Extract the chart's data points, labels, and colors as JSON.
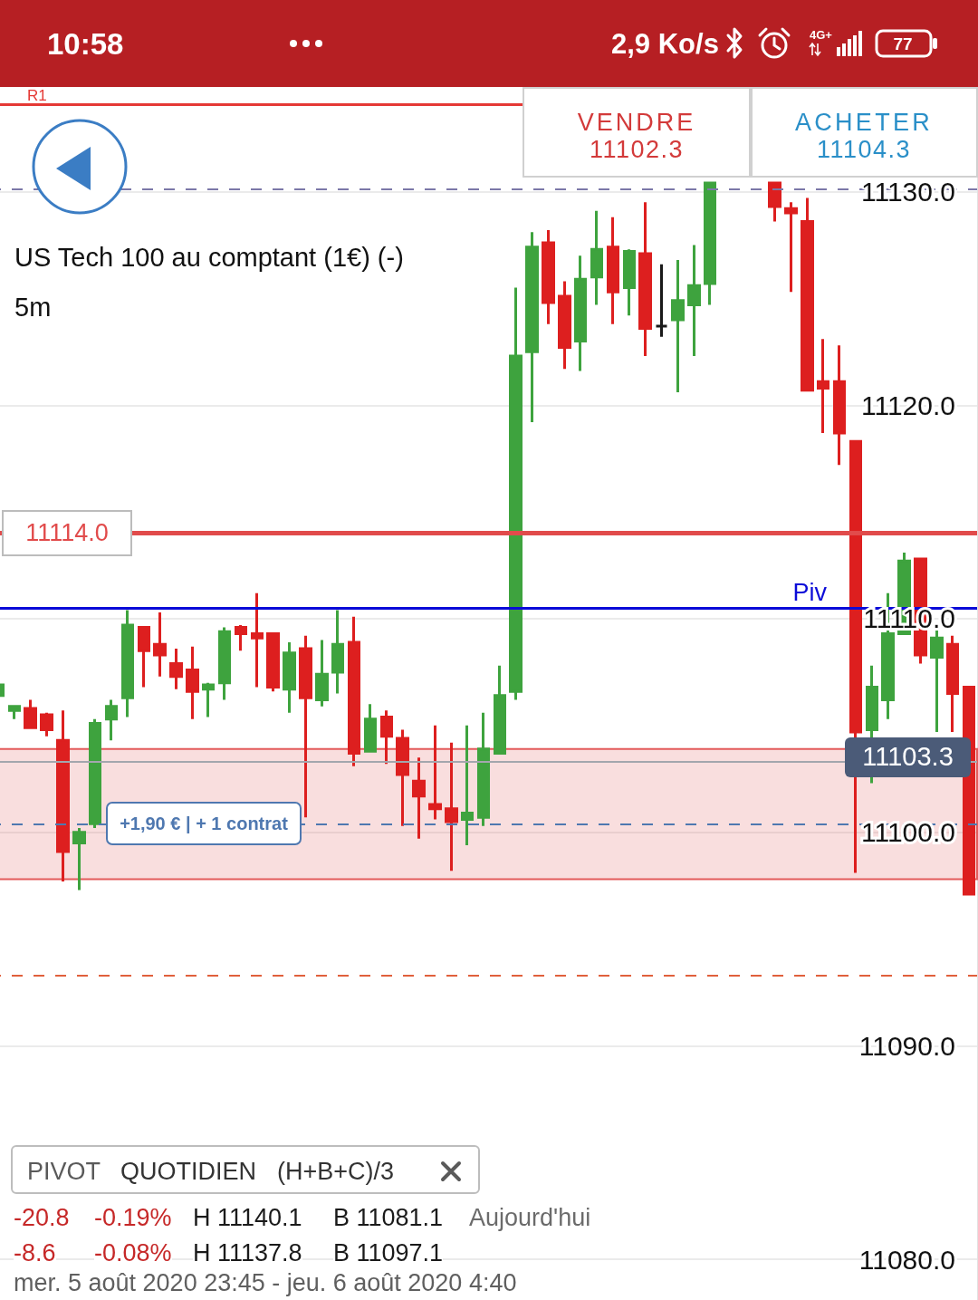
{
  "chart_data": {
    "type": "candlestick",
    "title": "US Tech 100 au comptant (1€) (-)",
    "subtitle": "5m",
    "categories": [
      null,
      null,
      null,
      null,
      null,
      null,
      null,
      null,
      null,
      null,
      null,
      null,
      null,
      null,
      null,
      null,
      null,
      null,
      null,
      null,
      null,
      null,
      null,
      null,
      null,
      null,
      null,
      null,
      null,
      null,
      null,
      null,
      null,
      null,
      null,
      null,
      null,
      null,
      null,
      null,
      null,
      null,
      null,
      null,
      null,
      null,
      null,
      null,
      null,
      null,
      null,
      null,
      null,
      null,
      null,
      null,
      null,
      null,
      null,
      null,
      null
    ],
    "ohlc": [
      [
        11106.4,
        11106.9,
        11106.4,
        11106.9
      ],
      [
        11105.7,
        11105.9,
        11105.3,
        11105.9
      ],
      [
        11105.8,
        11106.2,
        11104.9,
        11104.9
      ],
      [
        11105.5,
        11105.6,
        11104.5,
        11104.8
      ],
      [
        11104.3,
        11105.7,
        11097.7,
        11099.1
      ],
      [
        11099.5,
        11100.2,
        11097.3,
        11100.0
      ],
      [
        11100.4,
        11105.3,
        11100.2,
        11105.1
      ],
      [
        11105.3,
        11106.2,
        11104.3,
        11105.9
      ],
      [
        11106.3,
        11110.4,
        11105.4,
        11109.7
      ],
      [
        11109.6,
        11109.6,
        11106.8,
        11108.5
      ],
      [
        11108.8,
        11110.3,
        11107.3,
        11108.3
      ],
      [
        11107.9,
        11108.6,
        11106.7,
        11107.3
      ],
      [
        11107.6,
        11108.7,
        11105.3,
        11106.6
      ],
      [
        11106.7,
        11107.0,
        11105.4,
        11106.9
      ],
      [
        11107.0,
        11109.6,
        11106.2,
        11109.4
      ],
      [
        11109.6,
        11109.7,
        11108.5,
        11109.3
      ],
      [
        11109.3,
        11111.2,
        11106.8,
        11109.1
      ],
      [
        11109.3,
        11109.3,
        11106.6,
        11106.8
      ],
      [
        11106.7,
        11108.9,
        11105.6,
        11108.4
      ],
      [
        11108.6,
        11109.2,
        11100.7,
        11106.3
      ],
      [
        11106.2,
        11109.0,
        11105.9,
        11107.4
      ],
      [
        11107.5,
        11110.4,
        11106.5,
        11108.8
      ],
      [
        11108.9,
        11110.1,
        11103.1,
        11103.7
      ],
      [
        11103.8,
        11106.0,
        11103.8,
        11105.3
      ],
      [
        11105.4,
        11105.7,
        11103.2,
        11104.5
      ],
      [
        11104.4,
        11104.8,
        11100.3,
        11102.7
      ],
      [
        11102.4,
        11103.5,
        11099.7,
        11101.7
      ],
      [
        11101.3,
        11105.0,
        11100.6,
        11101.1
      ],
      [
        11101.1,
        11104.2,
        11098.2,
        11100.5
      ],
      [
        11100.6,
        11105.0,
        11099.4,
        11100.9
      ],
      [
        11100.7,
        11105.6,
        11100.3,
        11103.9
      ],
      [
        11103.7,
        11107.8,
        11103.7,
        11106.4
      ],
      [
        11106.6,
        11125.5,
        11106.2,
        11122.3
      ],
      [
        11122.5,
        11128.1,
        11119.2,
        11127.4
      ],
      [
        11127.6,
        11128.2,
        11123.8,
        11124.8
      ],
      [
        11125.1,
        11125.8,
        11121.7,
        11122.7
      ],
      [
        11123.0,
        11127.0,
        11121.6,
        11125.9
      ],
      [
        11126.0,
        11129.1,
        11124.7,
        11127.3
      ],
      [
        11127.4,
        11128.8,
        11123.8,
        11125.3
      ],
      [
        11125.5,
        11127.3,
        11124.2,
        11127.2
      ],
      [
        11127.1,
        11129.5,
        11122.3,
        11123.6
      ],
      [
        11123.7,
        11126.6,
        11123.2,
        11123.7
      ],
      [
        11124.0,
        11126.8,
        11120.6,
        11124.9
      ],
      [
        11124.7,
        11127.5,
        11122.3,
        11125.6
      ],
      [
        11125.7,
        11130.4,
        11124.7,
        11130.4
      ],
      null,
      null,
      null,
      [
        11130.4,
        11130.4,
        11128.6,
        11129.3
      ],
      [
        11129.2,
        11129.5,
        11125.3,
        11129.0
      ],
      [
        11128.6,
        11129.7,
        11120.7,
        11120.7
      ],
      [
        11121.1,
        11123.1,
        11118.7,
        11120.8
      ],
      [
        11121.1,
        11122.8,
        11117.2,
        11118.7
      ],
      [
        11118.3,
        11118.3,
        11098.1,
        11104.7
      ],
      [
        11104.8,
        11107.8,
        11102.3,
        11106.8
      ],
      [
        11106.2,
        11111.2,
        11105.3,
        11109.3
      ],
      [
        11109.3,
        11113.1,
        11109.3,
        11112.7
      ],
      [
        11112.8,
        11112.8,
        11107.9,
        11108.3
      ],
      [
        11108.2,
        11109.6,
        11104.7,
        11109.1
      ],
      [
        11108.8,
        11109.2,
        11104.7,
        11106.5
      ],
      [
        11106.8,
        11106.8,
        11097.1,
        11097.1
      ]
    ],
    "colors": [
      "#3ea33e",
      "#3ea33e",
      "#dd1f1f",
      "#dd1f1f",
      "#dd1f1f",
      "#3ea33e",
      "#3ea33e",
      "#3ea33e",
      "#3ea33e",
      "#dd1f1f",
      "#dd1f1f",
      "#dd1f1f",
      "#dd1f1f",
      "#3ea33e",
      "#3ea33e",
      "#dd1f1f",
      "#dd1f1f",
      "#dd1f1f",
      "#3ea33e",
      "#dd1f1f",
      "#3ea33e",
      "#3ea33e",
      "#dd1f1f",
      "#3ea33e",
      "#dd1f1f",
      "#dd1f1f",
      "#dd1f1f",
      "#dd1f1f",
      "#dd1f1f",
      "#3ea33e",
      "#3ea33e",
      "#3ea33e",
      "#3ea33e",
      "#3ea33e",
      "#dd1f1f",
      "#dd1f1f",
      "#3ea33e",
      "#3ea33e",
      "#dd1f1f",
      "#3ea33e",
      "#dd1f1f",
      "#1a1a1a",
      "#3ea33e",
      "#3ea33e",
      "#3ea33e",
      null,
      null,
      null,
      "#dd1f1f",
      "#dd1f1f",
      "#dd1f1f",
      "#dd1f1f",
      "#dd1f1f",
      "#dd1f1f",
      "#3ea33e",
      "#3ea33e",
      "#3ea33e",
      "#dd1f1f",
      "#3ea33e",
      "#dd1f1f",
      "#dd1f1f"
    ],
    "ylim": [
      11078.1,
      11134.9
    ],
    "yticks": [
      {
        "value": 11080,
        "label": "11080.0"
      },
      {
        "value": 11090,
        "label": "11090.0"
      },
      {
        "value": 11100,
        "label": "11100.0"
      },
      {
        "value": 11110,
        "label": "11110.0"
      },
      {
        "value": 11120,
        "label": "11120.0"
      },
      {
        "value": 11130,
        "label": "11130.0"
      }
    ],
    "grid": "y",
    "tick_labels": "y",
    "ref_lines": [
      {
        "axis": "y",
        "value": 11134.1,
        "label": "R1",
        "color": "#e53935"
      },
      {
        "axis": "y",
        "value": 11130.1,
        "color": "#7b78a8",
        "line_style": "dashed"
      },
      {
        "axis": "y",
        "value": 11114.0,
        "label": "11114.0",
        "color": "#e14b4b"
      },
      {
        "axis": "y",
        "value": 11110.5,
        "label": "Piv",
        "color": "#0b0bd8"
      },
      {
        "axis": "y",
        "value": 11103.3,
        "label": "11103.3",
        "color": "#a3a6ad"
      },
      {
        "axis": "y",
        "value": 11100.4,
        "label": "+1,90 € | + 1 contrat",
        "color": "#4f78b0",
        "line_style": "dashed"
      },
      {
        "axis": "y",
        "value": 11093.3,
        "color": "#e0603c",
        "line_style": "dashed"
      }
    ],
    "bands": [
      {
        "axis": "y",
        "from": 11097.8,
        "to": 11103.9,
        "color": "#e35b5b"
      }
    ],
    "annotations": [
      "10:58",
      "2,9 Ko/s",
      "4G+",
      "77",
      "VENDRE",
      "11102.3",
      "ACHETER",
      "11104.3",
      "PIVOT",
      "QUOTIDIEN",
      "(H+B+C)/3",
      "-20.8",
      "-0.19%",
      "H 11140.1",
      "B 11081.1",
      "Aujourd'hui",
      "-8.6",
      "-0.08%",
      "H 11137.8",
      "B 11097.1",
      "mer. 5 août 2020 23:45 - jeu. 6 août 2020 4:40"
    ]
  }
}
